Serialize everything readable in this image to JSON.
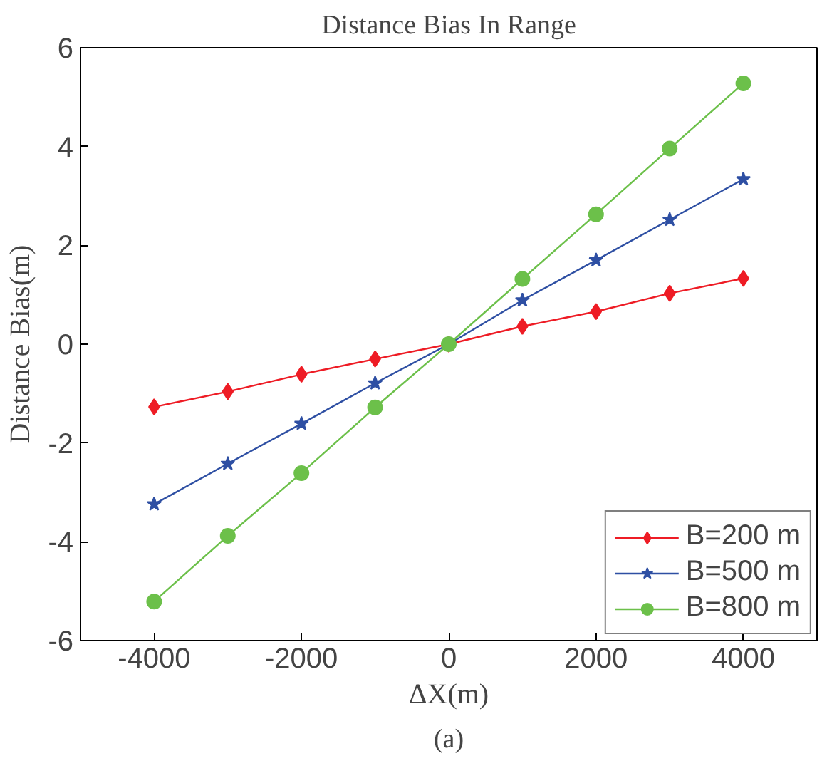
{
  "chart_data": {
    "type": "line",
    "title": "Distance Bias In Range",
    "xlabel": "ΔX(m)",
    "ylabel": "Distance Bias(m)",
    "annotations": [
      "(a)"
    ],
    "x": [
      -4000,
      -3000,
      -2000,
      -1000,
      0,
      1000,
      2000,
      3000,
      4000
    ],
    "xlim": [
      -5000,
      5000
    ],
    "xticks": [
      -4000,
      -2000,
      0,
      2000,
      4000
    ],
    "ylim": [
      -6,
      6
    ],
    "yticks": [
      -6,
      -4,
      -2,
      0,
      2,
      4,
      6
    ],
    "grid": false,
    "legend": "bottom right",
    "line_style": "solid",
    "series": [
      {
        "name": "B=200 m",
        "color": "#ee1c25",
        "marker": "diamond",
        "values": [
          -1.27,
          -0.96,
          -0.61,
          -0.3,
          0,
          0.36,
          0.66,
          1.03,
          1.33
        ]
      },
      {
        "name": "B=500 m",
        "color": "#2e4fa3",
        "marker": "star",
        "values": [
          -3.24,
          -2.42,
          -1.61,
          -0.79,
          0,
          0.89,
          1.7,
          2.52,
          3.34
        ]
      },
      {
        "name": "B=800 m",
        "color": "#6cc04a",
        "marker": "circle",
        "values": [
          -5.21,
          -3.88,
          -2.61,
          -1.28,
          0,
          1.32,
          2.63,
          3.96,
          5.28
        ]
      }
    ]
  }
}
